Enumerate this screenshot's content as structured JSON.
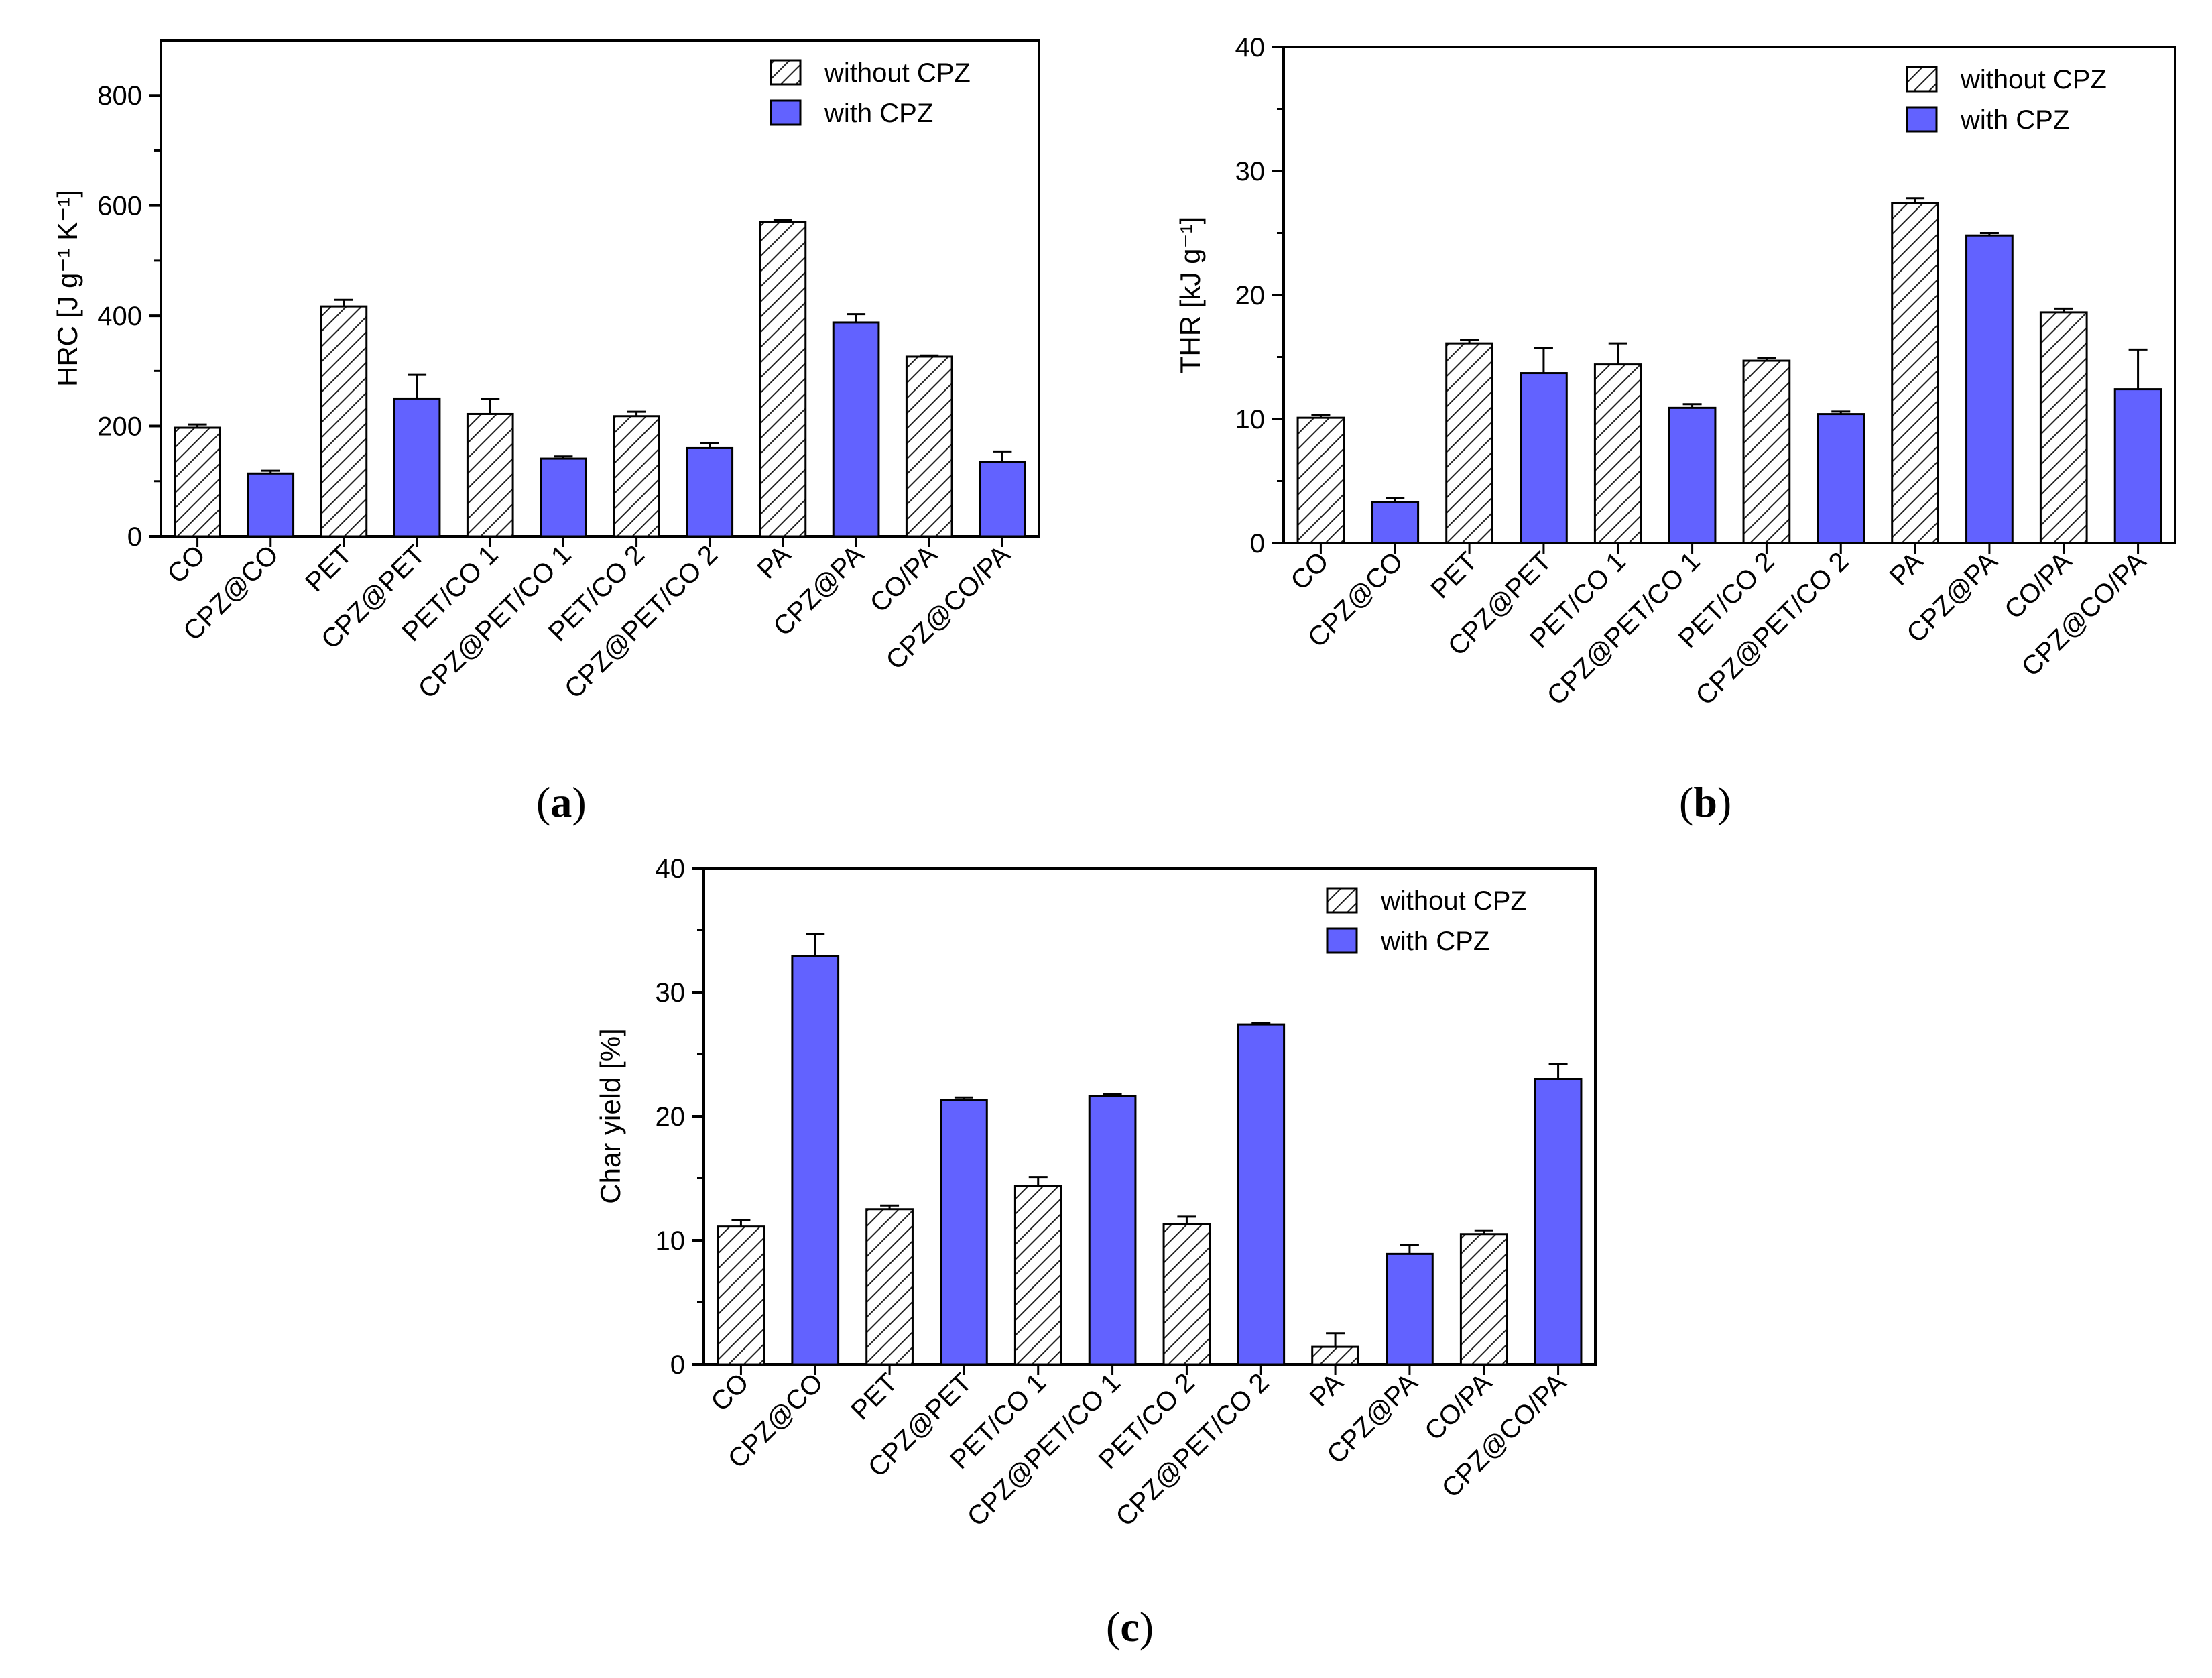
{
  "colors": {
    "with": "#6262ff",
    "without_fill": "#ffffff",
    "hatch": "#222222",
    "axis": "#000000"
  },
  "categories": [
    "CO",
    "CPZ@CO",
    "PET",
    "CPZ@PET",
    "PET/CO 1",
    "CPZ@PET/CO 1",
    "PET/CO 2",
    "CPZ@PET/CO 2",
    "PA",
    "CPZ@PA",
    "CO/PA",
    "CPZ@CO/PA"
  ],
  "bar_kind": [
    "without",
    "with",
    "without",
    "with",
    "without",
    "with",
    "without",
    "with",
    "without",
    "with",
    "without",
    "with"
  ],
  "legend": {
    "without": "without CPZ",
    "with": "with CPZ"
  },
  "chart_data": [
    {
      "id": "a",
      "panel_label": "a",
      "type": "bar",
      "ylabel": "HRC [J g⁻¹ K⁻¹]",
      "ylim": [
        0,
        900
      ],
      "yticks": [
        0,
        200,
        400,
        600,
        800
      ],
      "values": [
        197,
        114,
        417,
        250,
        222,
        141,
        218,
        160,
        570,
        388,
        326,
        135
      ],
      "errors": [
        6,
        5,
        12,
        43,
        28,
        4,
        8,
        9,
        4,
        15,
        2,
        19
      ]
    },
    {
      "id": "b",
      "panel_label": "b",
      "type": "bar",
      "ylabel": "THR [kJ g⁻¹]",
      "ylim": [
        0,
        40
      ],
      "yticks": [
        0,
        10,
        20,
        30,
        40
      ],
      "values": [
        10.1,
        3.3,
        16.1,
        13.7,
        14.4,
        10.9,
        14.7,
        10.4,
        27.4,
        24.8,
        18.6,
        12.4
      ],
      "errors": [
        0.2,
        0.3,
        0.3,
        2.0,
        1.7,
        0.3,
        0.2,
        0.2,
        0.4,
        0.2,
        0.3,
        3.2
      ]
    },
    {
      "id": "c",
      "panel_label": "c",
      "type": "bar",
      "ylabel": "Char yield [%]",
      "ylim": [
        0,
        40
      ],
      "yticks": [
        0,
        10,
        20,
        30,
        40
      ],
      "values": [
        11.1,
        32.9,
        12.5,
        21.3,
        14.4,
        21.6,
        11.3,
        27.4,
        1.4,
        8.9,
        10.5,
        23.0
      ],
      "errors": [
        0.5,
        1.8,
        0.3,
        0.2,
        0.7,
        0.2,
        0.6,
        0.1,
        1.1,
        0.7,
        0.3,
        1.2
      ]
    }
  ]
}
